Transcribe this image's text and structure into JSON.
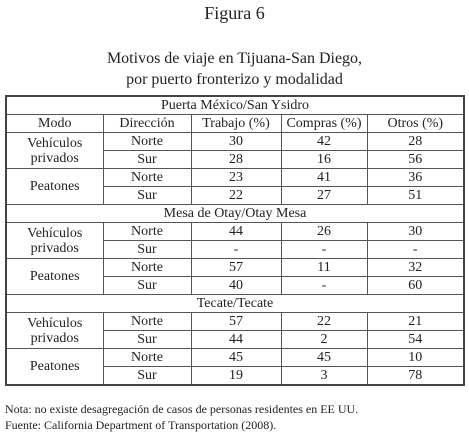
{
  "figure": {
    "label": "Figura 6",
    "title": [
      "Motivos de viaje en Tijuana-San Diego,",
      "por puerto fronterizo y modalidad"
    ]
  },
  "table": {
    "columns": [
      "Modo",
      "Dirección",
      "Trabajo (%)",
      "Compras (%)",
      "Otros (%)"
    ],
    "sections": [
      {
        "name": "Puerta México/San Ysidro",
        "groups": [
          {
            "mode": "Vehículos privados",
            "rows": [
              [
                "Norte",
                30,
                42,
                28
              ],
              [
                "Sur",
                28,
                16,
                56
              ]
            ]
          },
          {
            "mode": "Peatones",
            "rows": [
              [
                "Norte",
                23,
                41,
                36
              ],
              [
                "Sur",
                22,
                27,
                51
              ]
            ]
          }
        ]
      },
      {
        "name": "Mesa de Otay/Otay Mesa",
        "groups": [
          {
            "mode": "Vehículos privados",
            "rows": [
              [
                "Norte",
                44,
                26,
                30
              ],
              [
                "Sur",
                "-",
                "-",
                "-"
              ]
            ]
          },
          {
            "mode": "Peatones",
            "rows": [
              [
                "Norte",
                57,
                11,
                32
              ],
              [
                "Sur",
                40,
                "-",
                60
              ]
            ]
          }
        ]
      },
      {
        "name": "Tecate/Tecate",
        "groups": [
          {
            "mode": "Vehículos privados",
            "rows": [
              [
                "Norte",
                57,
                22,
                21
              ],
              [
                "Sur",
                44,
                2,
                54
              ]
            ]
          },
          {
            "mode": "Peatones",
            "rows": [
              [
                "Norte",
                45,
                45,
                10
              ],
              [
                "Sur",
                19,
                3,
                78
              ]
            ]
          }
        ]
      }
    ]
  },
  "notes": [
    "Nota: no existe desagregación de casos de personas residentes en EE UU.",
    "Fuente: California Department of Transportation (2008)."
  ]
}
